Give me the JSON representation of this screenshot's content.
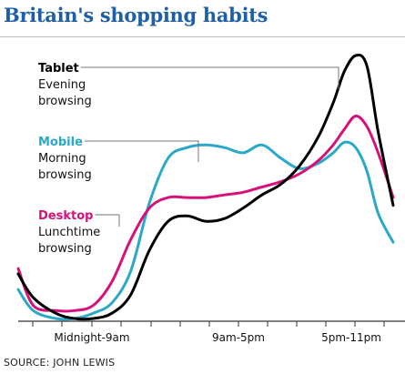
{
  "title": "Britain's shopping habits",
  "source": "SOURCE: JOHN LEWIS",
  "colors": {
    "title": "#1f5fa6",
    "tablet": "#000000",
    "mobile": "#2aa8c8",
    "desktop": "#d6127a",
    "axis": "#333333"
  },
  "chart_data": {
    "type": "line",
    "title": "Britain's shopping habits",
    "xlabel": "",
    "ylabel": "",
    "x_ticks": [
      "Midnight-9am",
      "9am-5pm",
      "5pm-11pm"
    ],
    "grid": false,
    "legend": "inline-annotations",
    "x_range": [
      0,
      1
    ],
    "y_range": [
      0,
      100
    ],
    "series": [
      {
        "name": "Tablet",
        "annotation": "Evening browsing",
        "x": [
          0,
          0.04,
          0.1,
          0.15,
          0.2,
          0.25,
          0.3,
          0.35,
          0.4,
          0.45,
          0.5,
          0.55,
          0.6,
          0.65,
          0.7,
          0.75,
          0.8,
          0.84,
          0.87,
          0.9,
          0.93,
          0.96,
          1.0
        ],
        "y": [
          17,
          8,
          2,
          0,
          0,
          2,
          9,
          26,
          37,
          39,
          37,
          38,
          42,
          47,
          51,
          58,
          69,
          82,
          94,
          100,
          96,
          71,
          43
        ]
      },
      {
        "name": "Mobile",
        "annotation": "Morning browsing",
        "x": [
          0,
          0.04,
          0.1,
          0.15,
          0.2,
          0.25,
          0.3,
          0.35,
          0.4,
          0.45,
          0.5,
          0.55,
          0.6,
          0.65,
          0.7,
          0.75,
          0.8,
          0.84,
          0.87,
          0.9,
          0.93,
          0.96,
          1.0
        ],
        "y": [
          11,
          3,
          0,
          0,
          2,
          6,
          18,
          44,
          61,
          65,
          66,
          65,
          63,
          66,
          61,
          57,
          59,
          63,
          67,
          65,
          56,
          40,
          29
        ]
      },
      {
        "name": "Desktop",
        "annotation": "Lunchtime browsing",
        "x": [
          0,
          0.04,
          0.1,
          0.15,
          0.2,
          0.25,
          0.3,
          0.35,
          0.4,
          0.45,
          0.5,
          0.55,
          0.6,
          0.65,
          0.7,
          0.75,
          0.8,
          0.84,
          0.87,
          0.9,
          0.93,
          0.96,
          1.0
        ],
        "y": [
          19,
          5,
          3,
          3,
          5,
          14,
          30,
          42,
          46,
          46,
          46,
          47,
          48,
          50,
          52,
          55,
          60,
          66,
          72,
          77,
          73,
          63,
          46
        ]
      }
    ]
  }
}
